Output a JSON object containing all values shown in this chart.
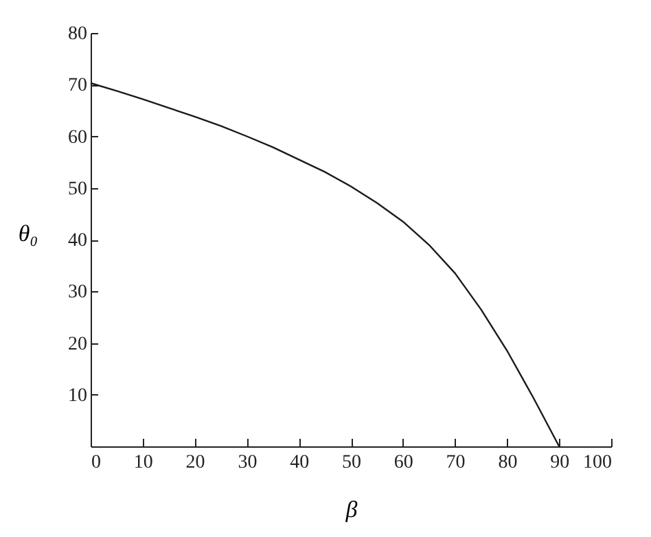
{
  "chart_data": {
    "type": "line",
    "xlabel": "β",
    "ylabel": "θ₀",
    "x": [
      0,
      5,
      10,
      15,
      20,
      25,
      30,
      35,
      40,
      45,
      50,
      55,
      60,
      65,
      70,
      75,
      80,
      85,
      90
    ],
    "series": [
      {
        "color": "#1a1a1a",
        "values": [
          70.3,
          68.8,
          67.2,
          65.5,
          63.8,
          62,
          60,
          57.9,
          55.5,
          53.1,
          50.3,
          47.1,
          43.5,
          39,
          33.5,
          26.5,
          18.5,
          9.5,
          0
        ]
      }
    ],
    "xlim": [
      0,
      100
    ],
    "xticks": [
      0,
      10,
      20,
      30,
      40,
      50,
      60,
      70,
      80,
      90,
      100
    ],
    "ylim": [
      0,
      80
    ],
    "yticks": [
      10,
      20,
      30,
      40,
      50,
      60,
      70,
      80
    ],
    "grid": false,
    "legend": false,
    "marker": "none",
    "line_style": "solid"
  }
}
